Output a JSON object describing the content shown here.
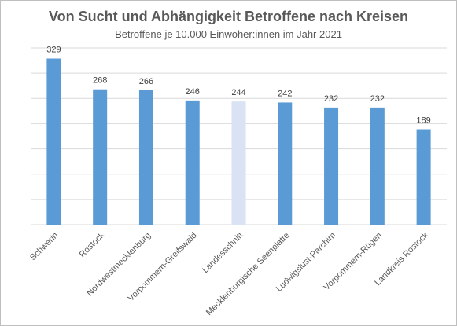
{
  "chart_data": {
    "type": "bar",
    "title": "Von Sucht und Abhängigkeit Betroffene nach Kreisen",
    "subtitle": "Betroffene je 10.000 Einwoher:innen  im Jahr 2021",
    "categories": [
      "Schwerin",
      "Rostock",
      "Nordwestmecklenburg",
      "Vorpommern-Greifswald",
      "Landesschnitt",
      "Mecklenburgische Seenplatte",
      "Ludwigslust-Parchim",
      "Vorpommern-Rügen",
      "Landkreis Rostock"
    ],
    "values": [
      329,
      268,
      266,
      246,
      244,
      242,
      232,
      232,
      189
    ],
    "highlight_index": 4,
    "colors": {
      "bar": "#5b9bd5",
      "highlight": "#dae3f3",
      "grid": "#d9d9d9"
    },
    "ylim": [
      0,
      350
    ],
    "grid": true,
    "data_labels": true
  }
}
